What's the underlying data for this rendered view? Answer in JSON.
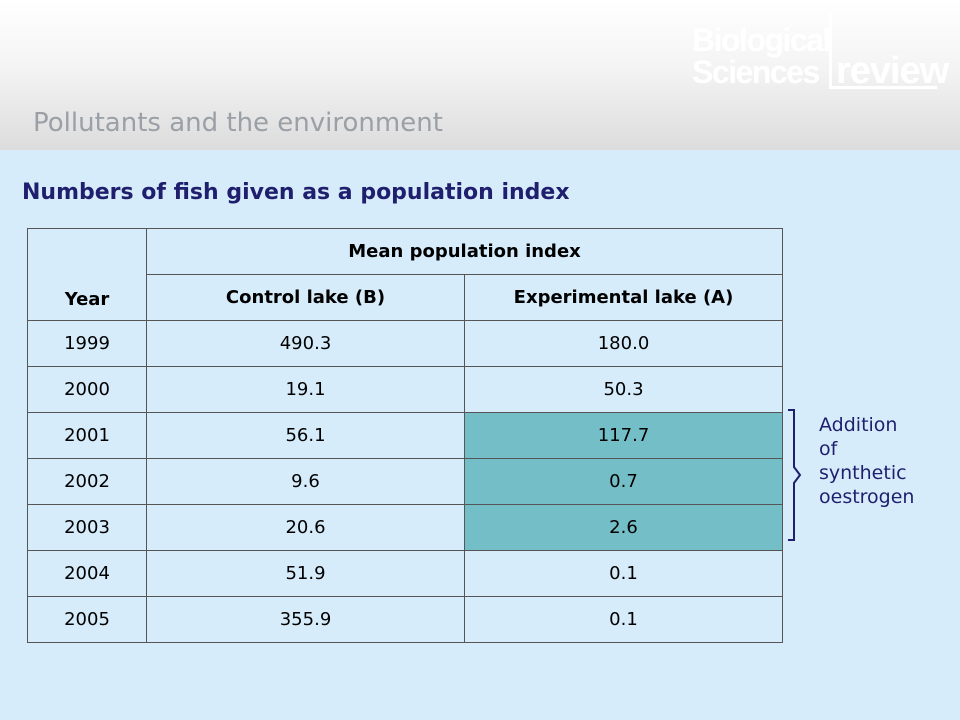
{
  "header": {
    "logo": {
      "line1": "Biological",
      "line2": "Sciences",
      "line3": "review"
    },
    "section_title": "Pollutants and the environment"
  },
  "main_title": "Numbers of fish given as a population index",
  "table": {
    "year_header": "Year",
    "group_header": "Mean population index",
    "control_header": "Control lake (B)",
    "experimental_header": "Experimental lake (A)",
    "rows": [
      {
        "year": "1999",
        "control": "490.3",
        "experimental": "180.0"
      },
      {
        "year": "2000",
        "control": "19.1",
        "experimental": "50.3"
      },
      {
        "year": "2001",
        "control": "56.1",
        "experimental": "117.7"
      },
      {
        "year": "2002",
        "control": "9.6",
        "experimental": "0.7"
      },
      {
        "year": "2003",
        "control": "20.6",
        "experimental": "2.6"
      },
      {
        "year": "2004",
        "control": "51.9",
        "experimental": "0.1"
      },
      {
        "year": "2005",
        "control": "355.9",
        "experimental": "0.1"
      }
    ]
  },
  "annotation": {
    "lines": [
      "Addition",
      "of",
      "synthetic",
      "oestrogen"
    ]
  },
  "colors": {
    "background": "#d6ecfb",
    "highlight": "#74bfc7",
    "title": "#1f1f6e",
    "section_title": "#9aa0a6"
  }
}
